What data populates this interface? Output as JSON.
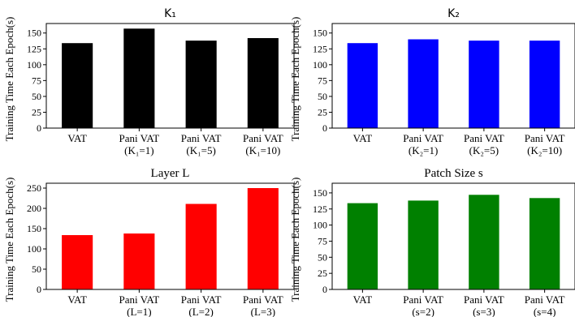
{
  "chart_data": [
    {
      "type": "bar",
      "title": "K₁",
      "ylabel": "Training Time Each Epoch(s)",
      "categories": [
        [
          "VAT"
        ],
        [
          "Pani VAT",
          "(K₁=1)"
        ],
        [
          "Pani VAT",
          "(K₁=5)"
        ],
        [
          "Pani VAT",
          "(K₁=10)"
        ]
      ],
      "values": [
        134,
        157,
        138,
        142
      ],
      "yticks": [
        0,
        25,
        50,
        75,
        100,
        125,
        150
      ],
      "ylim": [
        0,
        165
      ],
      "color": "#000000"
    },
    {
      "type": "bar",
      "title": "K₂",
      "ylabel": "Training Time Each Epoch(s)",
      "categories": [
        [
          "VAT"
        ],
        [
          "Pani VAT",
          "(K₂=1)"
        ],
        [
          "Pani VAT",
          "(K₂=5)"
        ],
        [
          "Pani VAT",
          "(K₂=10)"
        ]
      ],
      "values": [
        134,
        140,
        138,
        138
      ],
      "yticks": [
        0,
        25,
        50,
        75,
        100,
        125,
        150
      ],
      "ylim": [
        0,
        165
      ],
      "color": "#0000ff"
    },
    {
      "type": "bar",
      "title": "Layer L",
      "ylabel": "Training Time Each Epoch(s)",
      "categories": [
        [
          "VAT"
        ],
        [
          "Pani VAT",
          "(L=1)"
        ],
        [
          "Pani VAT",
          "(L=2)"
        ],
        [
          "Pani VAT",
          "(L=3)"
        ]
      ],
      "values": [
        134,
        138,
        211,
        250
      ],
      "yticks": [
        0,
        50,
        100,
        150,
        200,
        250
      ],
      "ylim": [
        0,
        262
      ],
      "color": "#ff0000"
    },
    {
      "type": "bar",
      "title": "Patch Size s",
      "ylabel": "Training Time Each Epoch(s)",
      "categories": [
        [
          "VAT"
        ],
        [
          "Pani VAT",
          "(s=2)"
        ],
        [
          "Pani VAT",
          "(s=3)"
        ],
        [
          "Pani VAT",
          "(s=4)"
        ]
      ],
      "values": [
        134,
        138,
        147,
        142
      ],
      "yticks": [
        0,
        25,
        50,
        75,
        100,
        125,
        150
      ],
      "ylim": [
        0,
        165
      ],
      "color": "#008000"
    }
  ]
}
